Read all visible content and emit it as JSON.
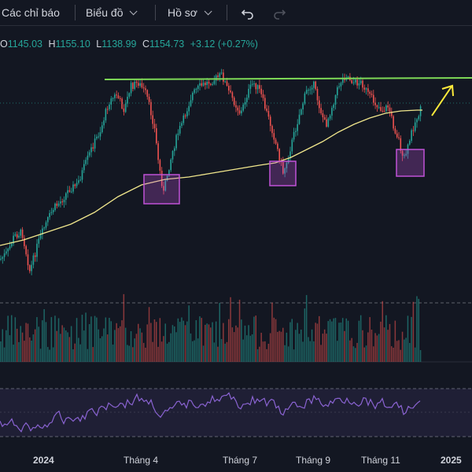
{
  "toolbar": {
    "indicators_label": "Các chỉ báo",
    "chart_type_label": "Biểu đồ",
    "profile_label": "Hồ sơ",
    "undo_icon": "undo-icon",
    "redo_icon": "redo-icon"
  },
  "legend": {
    "open_value": "1145.03",
    "high_label": "H",
    "high_value": "1155.10",
    "low_label": "L",
    "low_value": "1138.99",
    "close_label": "C",
    "close_value": "1154.73",
    "change": "+3.12 (+0.27%)"
  },
  "colors": {
    "up": "#26a69a",
    "down": "#ef5350",
    "ma": "#f0e68c",
    "resistance": "#7ed957",
    "highlight_box": "#c052d6",
    "rsi": "#8a63d2",
    "arrow": "#ffeb3b"
  },
  "x_axis": {
    "ticks": [
      "2024",
      "Tháng 4",
      "Tháng 7",
      "Tháng 9",
      "Tháng 11",
      "2025"
    ]
  },
  "chart_data": {
    "type": "candlestick",
    "last_close": 1154.73,
    "resistance_level": 1268,
    "panels": [
      "price",
      "volume",
      "rsi"
    ],
    "highlight_zones": 3
  }
}
